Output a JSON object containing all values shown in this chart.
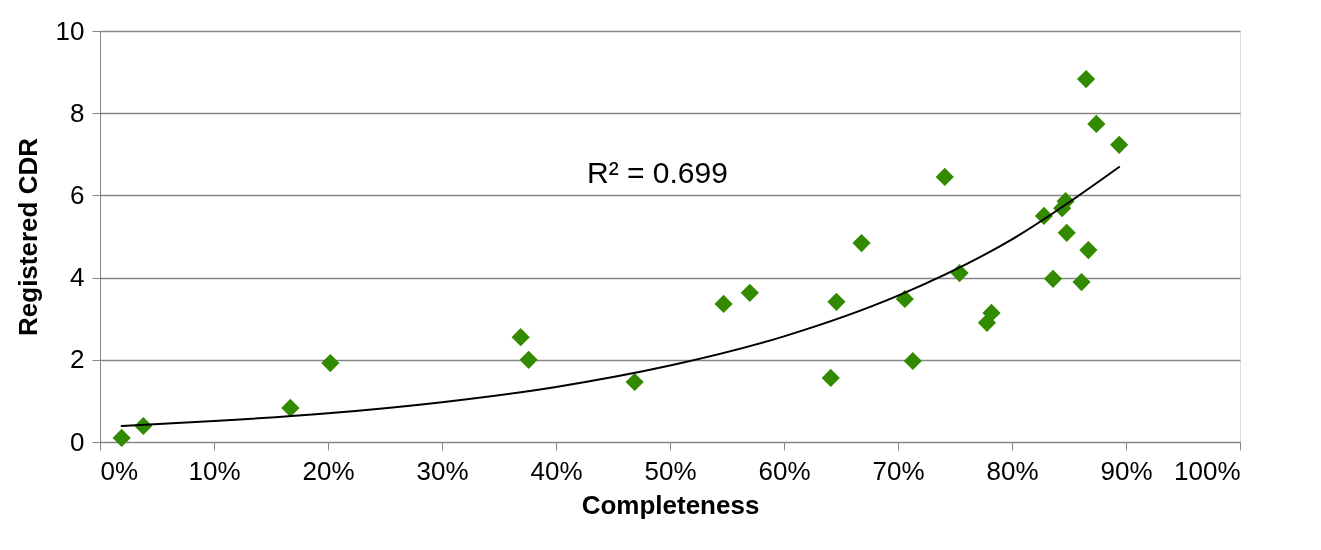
{
  "chart_data": {
    "type": "scatter",
    "xlabel": "Completeness",
    "ylabel": "Registered CDR",
    "xlim": [
      0,
      100
    ],
    "ylim": [
      0,
      10
    ],
    "xticks": [
      {
        "value": 0,
        "label": "0%"
      },
      {
        "value": 10,
        "label": "10%"
      },
      {
        "value": 20,
        "label": "20%"
      },
      {
        "value": 30,
        "label": "30%"
      },
      {
        "value": 40,
        "label": "40%"
      },
      {
        "value": 50,
        "label": "50%"
      },
      {
        "value": 60,
        "label": "60%"
      },
      {
        "value": 70,
        "label": "70%"
      },
      {
        "value": 80,
        "label": "80%"
      },
      {
        "value": 90,
        "label": "90%"
      },
      {
        "value": 100,
        "label": "100%"
      }
    ],
    "yticks": [
      0,
      2,
      4,
      6,
      8,
      10
    ],
    "grid": "y",
    "marker": "diamond",
    "annotations": [
      "R² = 0.699"
    ],
    "series": [
      {
        "color": "#318a00",
        "x": [
          1.9,
          3.8,
          16.7,
          20.2,
          36.9,
          37.6,
          46.9,
          54.7,
          57.0,
          64.1,
          64.6,
          66.8,
          70.6,
          71.3,
          74.1,
          75.4,
          77.8,
          78.2,
          82.8,
          83.6,
          84.7,
          84.4,
          84.8,
          86.1,
          86.7,
          86.5,
          87.4,
          89.4
        ],
        "values": [
          0.1,
          0.39,
          0.83,
          1.92,
          2.55,
          2.0,
          1.46,
          3.36,
          3.63,
          1.56,
          3.41,
          4.84,
          3.48,
          1.97,
          6.45,
          4.11,
          2.9,
          3.14,
          5.5,
          3.97,
          5.86,
          5.69,
          5.09,
          3.89,
          4.67,
          8.83,
          7.74,
          7.23
        ]
      },
      {
        "type": "line",
        "color": "#000000",
        "marker": "none",
        "line_style": "solid",
        "x": [
          1.9,
          10,
          20,
          30,
          40,
          50,
          60,
          70,
          80,
          89.4
        ],
        "values": [
          0.39,
          0.51,
          0.7,
          0.97,
          1.34,
          1.86,
          2.57,
          3.56,
          4.93,
          6.69
        ]
      }
    ]
  }
}
